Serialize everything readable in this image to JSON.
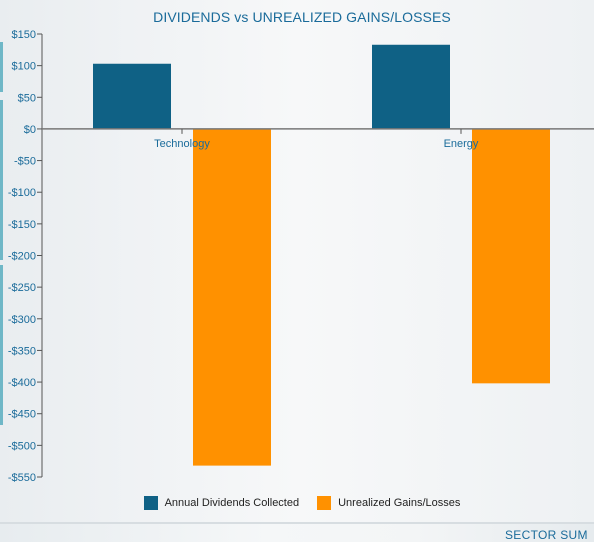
{
  "chart_data": {
    "type": "bar",
    "title": "DIVIDENDS vs UNREALIZED GAINS/LOSSES",
    "categories": [
      "Technology",
      "Energy"
    ],
    "series": [
      {
        "name": "Annual Dividends Collected",
        "color": "#0f6185",
        "values": [
          103,
          133
        ]
      },
      {
        "name": "Unrealized Gains/Losses",
        "color": "#ff9100",
        "values": [
          -532,
          -402
        ]
      }
    ],
    "ylim": [
      -550,
      150
    ],
    "yticks": [
      150,
      100,
      50,
      0,
      -50,
      -100,
      -150,
      -200,
      -250,
      -300,
      -350,
      -400,
      -450,
      -500,
      -550
    ],
    "ytick_labels": [
      "$150",
      "$100",
      "$50",
      "$0",
      "-$50",
      "-$100",
      "-$150",
      "-$200",
      "-$250",
      "-$300",
      "-$350",
      "-$400",
      "-$450",
      "-$500",
      "-$550"
    ],
    "legend_position": "bottom",
    "grid": false
  },
  "footer": {
    "section_label": "SECTOR SUM"
  }
}
